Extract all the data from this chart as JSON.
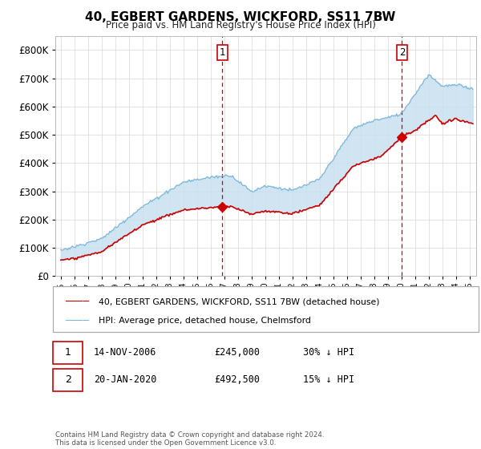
{
  "title": "40, EGBERT GARDENS, WICKFORD, SS11 7BW",
  "subtitle": "Price paid vs. HM Land Registry's House Price Index (HPI)",
  "hpi_color": "#7ab8d9",
  "hpi_fill_color": "#c8e0f0",
  "property_color": "#cc0000",
  "dashed_vline_color": "#cc0000",
  "ylim": [
    0,
    850000
  ],
  "yticks": [
    0,
    100000,
    200000,
    300000,
    400000,
    500000,
    600000,
    700000,
    800000
  ],
  "xlim_start": 1994.6,
  "xlim_end": 2025.5,
  "sale1_year": 2006.87,
  "sale1_price": 245000,
  "sale1_label": "1",
  "sale2_year": 2020.05,
  "sale2_price": 492500,
  "sale2_label": "2",
  "legend_property": "40, EGBERT GARDENS, WICKFORD, SS11 7BW (detached house)",
  "legend_hpi": "HPI: Average price, detached house, Chelmsford",
  "annotation1_date": "14-NOV-2006",
  "annotation1_price": "£245,000",
  "annotation1_note": "30% ↓ HPI",
  "annotation2_date": "20-JAN-2020",
  "annotation2_price": "£492,500",
  "annotation2_note": "15% ↓ HPI",
  "footer": "Contains HM Land Registry data © Crown copyright and database right 2024.\nThis data is licensed under the Open Government Licence v3.0.",
  "background_color": "#ffffff",
  "grid_color": "#d8d8d8"
}
